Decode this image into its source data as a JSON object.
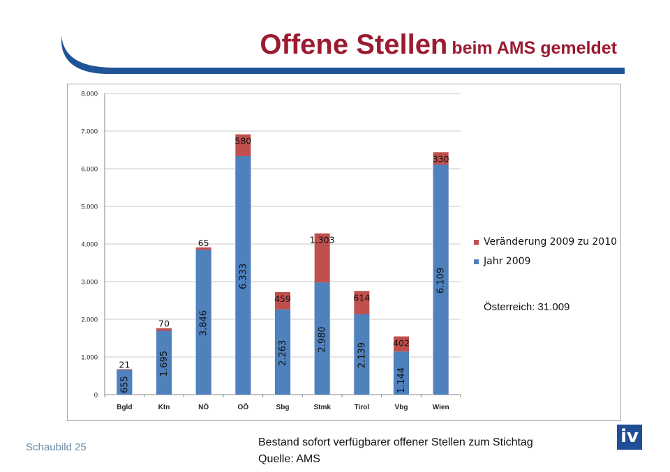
{
  "page": {
    "title_main": "Offene Stellen",
    "title_sub": "beim AMS gemeldet",
    "slide_label": "Schaubild 25",
    "footnote_line1": "Bestand sofort verfügbarer offener Stellen zum Stichtag",
    "footnote_line2": "Quelle: AMS",
    "logo_text": "iv",
    "accent_color": "#9b1b30",
    "brand_blue": "#1f4e96"
  },
  "chart_data": {
    "type": "bar",
    "stacked": true,
    "title": "",
    "xlabel": "",
    "ylabel": "",
    "ylim": [
      0,
      8000
    ],
    "y_ticks": [
      "0",
      "1.000",
      "2.000",
      "3.000",
      "4.000",
      "5.000",
      "6.000",
      "7.000",
      "8.000"
    ],
    "grid": true,
    "legend_position": "right",
    "categories": [
      "Bgld",
      "Ktn",
      "NÖ",
      "OÖ",
      "Sbg",
      "Stmk",
      "Tirol",
      "Vbg",
      "Wien"
    ],
    "series": [
      {
        "name": "Jahr 2009",
        "color": "#4f81bd",
        "values": [
          655,
          1695,
          3846,
          6333,
          2263,
          2980,
          2139,
          1144,
          6109
        ],
        "labels": [
          "655",
          "1.695",
          "3.846",
          "6.333",
          "2.263",
          "2.980",
          "2.139",
          "1.144",
          "6.109"
        ]
      },
      {
        "name": "Veränderung 2009 zu 2010",
        "color": "#c0504d",
        "values": [
          21,
          70,
          65,
          580,
          459,
          1303,
          614,
          402,
          330
        ],
        "labels": [
          "21",
          "70",
          "65",
          "580",
          "459",
          "1.303",
          "614",
          "402",
          "330"
        ]
      }
    ],
    "annotation": "Österreich: 31.009"
  }
}
